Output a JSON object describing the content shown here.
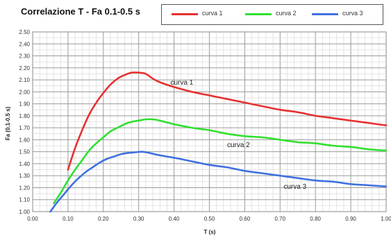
{
  "chart_data": {
    "type": "line",
    "title": "Correlazione T - Fa 0.1-0.5 s",
    "xlabel": "T (s)",
    "ylabel": "Fa (0.1-0.5 s)",
    "xlim": [
      0.0,
      1.0
    ],
    "ylim": [
      1.0,
      2.5
    ],
    "x_ticks": [
      "0.00",
      "0.10",
      "0.20",
      "0.30",
      "0.40",
      "0.50",
      "0.60",
      "0.70",
      "0.80",
      "0.90",
      "1.00"
    ],
    "y_ticks": [
      "1.00",
      "1.10",
      "1.20",
      "1.30",
      "1.40",
      "1.50",
      "1.60",
      "1.70",
      "1.80",
      "1.90",
      "2.00",
      "2.10",
      "2.20",
      "2.30",
      "2.40",
      "2.50"
    ],
    "grid": true,
    "legend_position": "top",
    "series": [
      {
        "name": "curva 1",
        "color": "#e83030",
        "x": [
          0.1,
          0.12,
          0.14,
          0.16,
          0.18,
          0.2,
          0.22,
          0.24,
          0.26,
          0.28,
          0.3,
          0.32,
          0.34,
          0.36,
          0.4,
          0.45,
          0.5,
          0.55,
          0.6,
          0.65,
          0.7,
          0.75,
          0.8,
          0.85,
          0.9,
          0.95,
          1.0
        ],
        "y": [
          1.35,
          1.53,
          1.68,
          1.81,
          1.91,
          1.99,
          2.06,
          2.11,
          2.14,
          2.16,
          2.16,
          2.15,
          2.11,
          2.08,
          2.04,
          2.0,
          1.97,
          1.94,
          1.91,
          1.88,
          1.85,
          1.83,
          1.8,
          1.78,
          1.76,
          1.74,
          1.72
        ]
      },
      {
        "name": "curva 2",
        "color": "#30e030",
        "x": [
          0.06,
          0.08,
          0.1,
          0.12,
          0.14,
          0.16,
          0.18,
          0.2,
          0.22,
          0.24,
          0.26,
          0.28,
          0.3,
          0.32,
          0.34,
          0.36,
          0.4,
          0.45,
          0.5,
          0.55,
          0.6,
          0.65,
          0.7,
          0.75,
          0.8,
          0.85,
          0.9,
          0.95,
          1.0
        ],
        "y": [
          1.07,
          1.16,
          1.26,
          1.35,
          1.43,
          1.51,
          1.57,
          1.62,
          1.67,
          1.7,
          1.73,
          1.75,
          1.76,
          1.77,
          1.77,
          1.76,
          1.73,
          1.7,
          1.68,
          1.65,
          1.63,
          1.62,
          1.6,
          1.58,
          1.57,
          1.55,
          1.54,
          1.52,
          1.51
        ]
      },
      {
        "name": "curva 3",
        "color": "#4070e0",
        "x": [
          0.05,
          0.07,
          0.09,
          0.11,
          0.13,
          0.15,
          0.17,
          0.19,
          0.21,
          0.23,
          0.25,
          0.27,
          0.29,
          0.31,
          0.33,
          0.36,
          0.4,
          0.45,
          0.5,
          0.55,
          0.6,
          0.65,
          0.7,
          0.75,
          0.8,
          0.85,
          0.9,
          0.95,
          1.0
        ],
        "y": [
          1.0,
          1.08,
          1.15,
          1.22,
          1.28,
          1.33,
          1.37,
          1.41,
          1.44,
          1.46,
          1.48,
          1.49,
          1.495,
          1.5,
          1.49,
          1.47,
          1.45,
          1.42,
          1.39,
          1.37,
          1.34,
          1.32,
          1.3,
          1.28,
          1.26,
          1.25,
          1.23,
          1.22,
          1.21
        ]
      }
    ],
    "annotations": [
      {
        "text": "curva 1",
        "x": 0.39,
        "y": 2.06
      },
      {
        "text": "curva 2",
        "x": 0.55,
        "y": 1.54
      },
      {
        "text": "curva 3",
        "x": 0.71,
        "y": 1.19
      }
    ]
  }
}
